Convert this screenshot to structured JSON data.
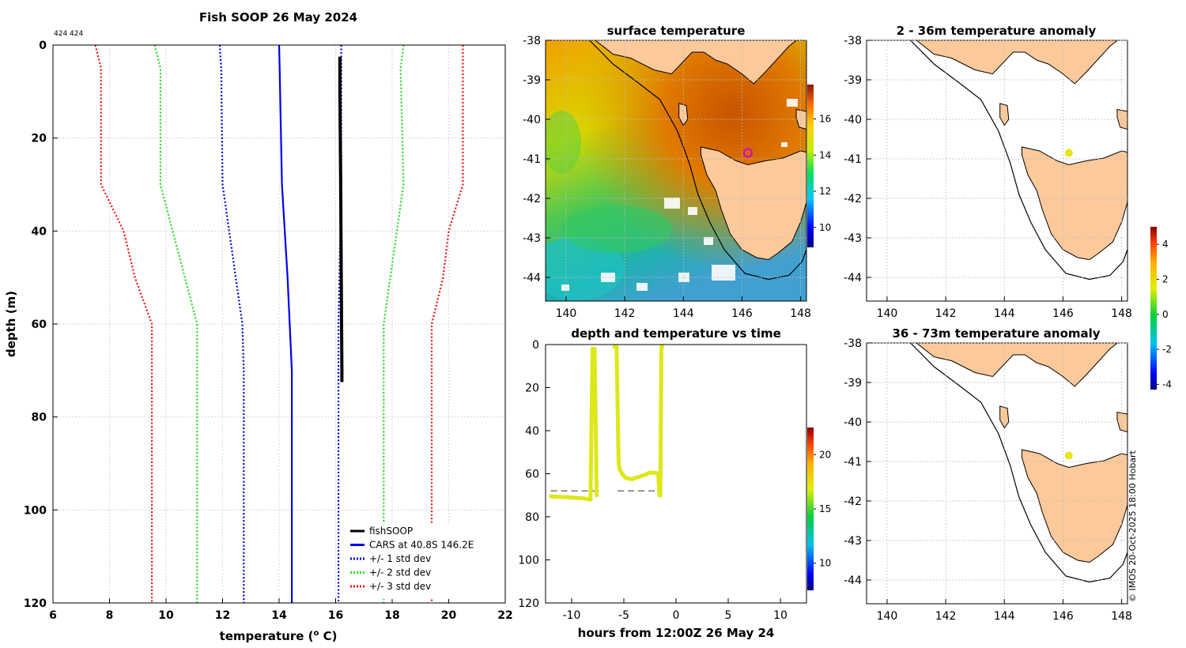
{
  "figure": {
    "watermark": "© IMOS 20-Oct-2025 18:00 Hobart"
  },
  "colors": {
    "fishsoop": "#000000",
    "cars": "#0000ee",
    "std1": "#0000cc",
    "std2": "#22dd22",
    "std3": "#ee1111",
    "trace": "#dde81a",
    "land": "#fbc99a",
    "coast": "#000000",
    "dashed": "#777777"
  },
  "chart_data": [
    {
      "id": "profile",
      "type": "line",
      "title": "Fish SOOP 26 May 2024",
      "annotation": "424 424",
      "xlabel": "temperature (",
      "xlabel_sup": "o",
      "xlabel_tail": " C)",
      "ylabel": "depth (m)",
      "xlim": [
        6,
        22
      ],
      "ylim": [
        120,
        0
      ],
      "xticks": [
        6,
        8,
        10,
        12,
        14,
        16,
        18,
        20,
        22
      ],
      "yticks": [
        0,
        20,
        40,
        60,
        80,
        100,
        120
      ],
      "grid": true,
      "legend_position": "bottom-right",
      "series": [
        {
          "name": "fishSOOP",
          "style": "solid",
          "color": "#000000",
          "depth": [
            2.5,
            10,
            30,
            50,
            70,
            72.5
          ],
          "temp": [
            16.15,
            16.15,
            16.18,
            16.2,
            16.22,
            16.22
          ]
        },
        {
          "name": "CARS at 40.8S 146.2E",
          "style": "solid",
          "color": "#0000ee",
          "depth": [
            0,
            5,
            30,
            50,
            70,
            120
          ],
          "temp": [
            14.0,
            14.02,
            14.1,
            14.3,
            14.45,
            14.45
          ]
        },
        {
          "name": "+/- 1 std dev",
          "style": "dotted",
          "color": "#0000cc",
          "pairs": [
            {
              "depth": [
                0,
                5,
                30,
                60,
                70,
                120
              ],
              "temp": [
                11.9,
                11.95,
                12.0,
                12.7,
                12.75,
                12.75
              ]
            },
            {
              "depth": [
                0,
                5,
                30,
                60,
                70,
                120
              ],
              "temp": [
                16.2,
                16.2,
                16.2,
                16.1,
                16.1,
                16.1
              ]
            }
          ]
        },
        {
          "name": "+/- 2 std dev",
          "style": "dotted",
          "color": "#22dd22",
          "pairs": [
            {
              "depth": [
                0,
                5,
                30,
                60,
                120
              ],
              "temp": [
                9.6,
                9.8,
                9.8,
                11.1,
                11.1
              ]
            },
            {
              "depth": [
                0,
                5,
                30,
                60,
                120
              ],
              "temp": [
                18.4,
                18.3,
                18.4,
                17.7,
                17.7
              ]
            }
          ]
        },
        {
          "name": "+/- 3 std dev",
          "style": "dotted",
          "color": "#ee1111",
          "pairs": [
            {
              "depth": [
                0,
                5,
                30,
                40,
                50,
                60,
                120
              ],
              "temp": [
                7.5,
                7.7,
                7.7,
                8.5,
                8.9,
                9.5,
                9.5
              ]
            },
            {
              "depth": [
                0,
                5,
                30,
                40,
                50,
                60,
                120
              ],
              "temp": [
                20.5,
                20.5,
                20.5,
                20.0,
                19.8,
                19.4,
                19.4
              ]
            }
          ]
        }
      ]
    },
    {
      "id": "sst",
      "type": "heatmap",
      "title": "surface temperature",
      "xlim": [
        139.3,
        148.2
      ],
      "ylim": [
        -44.6,
        -38
      ],
      "xticks": [
        140,
        142,
        144,
        146,
        148
      ],
      "yticks": [
        -38,
        -39,
        -40,
        -41,
        -42,
        -43,
        -44
      ],
      "colorbar": {
        "range": [
          8.9,
          17.9
        ],
        "ticks": [
          10,
          12,
          14,
          16
        ]
      },
      "marker": {
        "lon": 146.2,
        "lat": -40.85
      }
    },
    {
      "id": "anom1",
      "type": "heatmap",
      "title": "2 - 36m temperature anomaly",
      "xlim": [
        139.3,
        148.2
      ],
      "ylim": [
        -44.6,
        -38
      ],
      "xticks": [
        140,
        142,
        144,
        146,
        148
      ],
      "yticks": [
        -38,
        -39,
        -40,
        -41,
        -42,
        -43,
        -44
      ],
      "marker": {
        "lon": 146.2,
        "lat": -40.85,
        "color": "#e6e61a"
      }
    },
    {
      "id": "anom2",
      "type": "heatmap",
      "title": "36 - 73m temperature anomaly",
      "xlim": [
        139.3,
        148.2
      ],
      "ylim": [
        -44.6,
        -38
      ],
      "xticks": [
        140,
        142,
        144,
        146,
        148
      ],
      "yticks": [
        -38,
        -39,
        -40,
        -41,
        -42,
        -43,
        -44
      ],
      "marker": {
        "lon": 146.2,
        "lat": -40.85,
        "color": "#e6e61a"
      }
    },
    {
      "id": "anom_colorbar",
      "type": "heatmap",
      "range": [
        -4.3,
        5.0
      ],
      "ticks": [
        -4,
        -2,
        0,
        2,
        4
      ]
    },
    {
      "id": "timeseries",
      "type": "scatter",
      "title": "depth and temperature vs time",
      "xlabel": "hours from 12:00Z 26 May 24",
      "xlim": [
        -12.5,
        12.5
      ],
      "ylim": [
        120,
        0
      ],
      "xticks": [
        -10,
        -5,
        0,
        5,
        10
      ],
      "yticks": [
        0,
        20,
        40,
        60,
        80,
        100,
        120
      ],
      "colorbar": {
        "range": [
          7.5,
          22.5
        ],
        "ticks": [
          10,
          15,
          20
        ]
      },
      "trace_color_temp": 16.2,
      "segments": [
        {
          "hours": [
            -12.0,
            -10.0,
            -8.8,
            -8.2,
            -8.0,
            -7.8,
            -7.6
          ],
          "depth": [
            70.5,
            71.0,
            71.5,
            72.0,
            2,
            2,
            70
          ]
        },
        {
          "hours": [
            -5.9,
            -5.7,
            -5.5,
            -5.4,
            -5.1,
            -4.8,
            -4.2,
            -3.6,
            -3.0,
            -2.5,
            -2.0,
            -1.7,
            -1.6,
            -1.5,
            -1.4,
            -1.3
          ],
          "depth": [
            1,
            1,
            55,
            58,
            60.5,
            62,
            62.5,
            61.5,
            60.5,
            59.5,
            59.5,
            60,
            70,
            70,
            1,
            1
          ]
        }
      ],
      "reference_depth": [
        {
          "hours": [
            -12.0,
            -7.6
          ],
          "depth": 68
        },
        {
          "hours": [
            -5.6,
            -1.4
          ],
          "depth": 68
        }
      ]
    }
  ]
}
